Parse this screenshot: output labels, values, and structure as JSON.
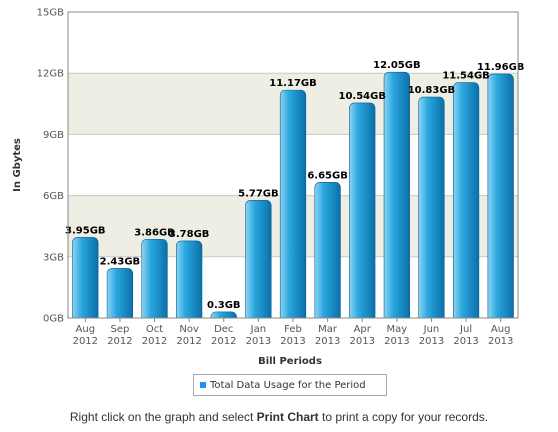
{
  "chart_data": {
    "type": "bar",
    "categories": [
      [
        "Aug",
        "2012"
      ],
      [
        "Sep",
        "2012"
      ],
      [
        "Oct",
        "2012"
      ],
      [
        "Nov",
        "2012"
      ],
      [
        "Dec",
        "2012"
      ],
      [
        "Jan",
        "2013"
      ],
      [
        "Feb",
        "2013"
      ],
      [
        "Mar",
        "2013"
      ],
      [
        "Apr",
        "2013"
      ],
      [
        "May",
        "2013"
      ],
      [
        "Jun",
        "2013"
      ],
      [
        "Jul",
        "2013"
      ],
      [
        "Aug",
        "2013"
      ]
    ],
    "values": [
      3.95,
      2.43,
      3.86,
      3.78,
      0.3,
      5.77,
      11.17,
      6.65,
      10.54,
      12.05,
      10.83,
      11.54,
      11.96
    ],
    "data_labels": [
      "3.95GB",
      "2.43GB",
      "3.86GB",
      "3.78GB",
      "0.3GB",
      "5.77GB",
      "11.17GB",
      "6.65GB",
      "10.54GB",
      "12.05GB",
      "10.83GB",
      "11.54GB",
      "11.96GB"
    ],
    "ylim": [
      0,
      15
    ],
    "yticks": [
      0,
      3,
      6,
      9,
      12,
      15
    ],
    "ytick_labels": [
      "0GB",
      "3GB",
      "6GB",
      "9GB",
      "12GB",
      "15GB"
    ],
    "xlabel": "Bill Periods",
    "ylabel": "In Gbytes",
    "legend": [
      "Total Data Usage for the Period"
    ],
    "legend_position": "bottom-center",
    "grid": true,
    "colors": {
      "bar_light": "#8fd4f3",
      "bar_mid": "#2aa7e0",
      "bar_dark": "#0b6fa8",
      "band_alt": "#eeeee4",
      "legend_marker": "#1e90ff"
    }
  },
  "footer": {
    "prefix": "Right click on the graph and select ",
    "bold": "Print Chart",
    "suffix": " to print a copy for your records."
  }
}
